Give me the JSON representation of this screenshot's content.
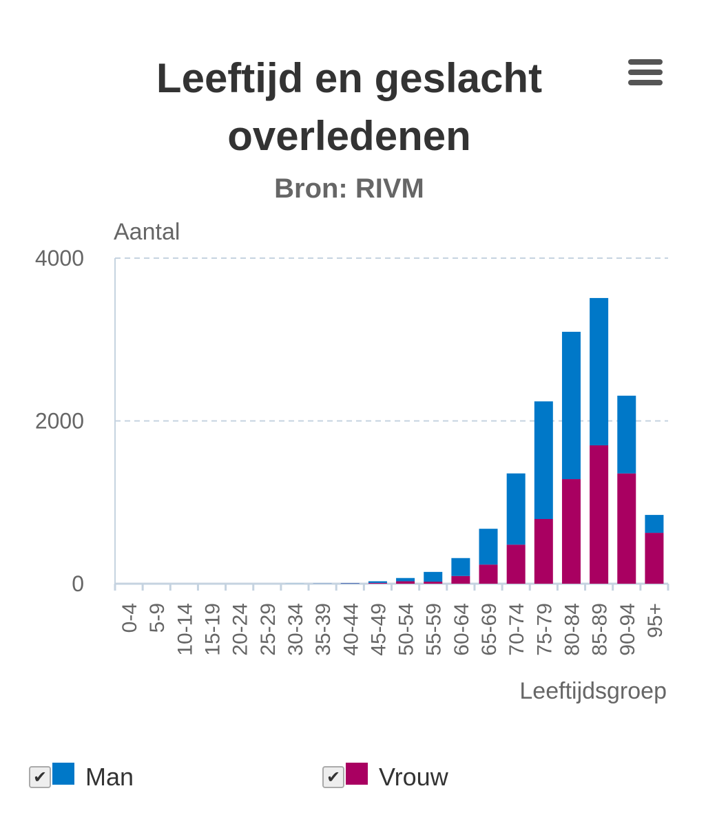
{
  "chart_data": {
    "type": "bar",
    "stacked": true,
    "title": "Leeftijd en geslacht overledenen",
    "subtitle": "Bron: RIVM",
    "xlabel": "Leeftijdsgroep",
    "ylabel": "Aantal",
    "ylim": [
      0,
      4000
    ],
    "yticks": [
      "0",
      "2000",
      "4000"
    ],
    "categories": [
      "0-4",
      "5-9",
      "10-14",
      "15-19",
      "20-24",
      "25-29",
      "30-34",
      "35-39",
      "40-44",
      "45-49",
      "50-54",
      "55-59",
      "60-64",
      "65-69",
      "70-74",
      "75-79",
      "80-84",
      "85-89",
      "90-94",
      "95+"
    ],
    "series": [
      {
        "name": "Man",
        "color": "#0078c8",
        "values": [
          0,
          0,
          0,
          0,
          0,
          0,
          1,
          2,
          5,
          20,
          40,
          120,
          220,
          440,
          875,
          1445,
          1810,
          1810,
          955,
          220
        ]
      },
      {
        "name": "Vrouw",
        "color": "#a90061",
        "values": [
          0,
          0,
          0,
          0,
          0,
          0,
          0,
          1,
          3,
          10,
          30,
          25,
          95,
          235,
          480,
          795,
          1285,
          1700,
          1355,
          625
        ]
      }
    ],
    "grid": true,
    "legend": "bottom"
  },
  "menu_icon": "hamburger-icon"
}
